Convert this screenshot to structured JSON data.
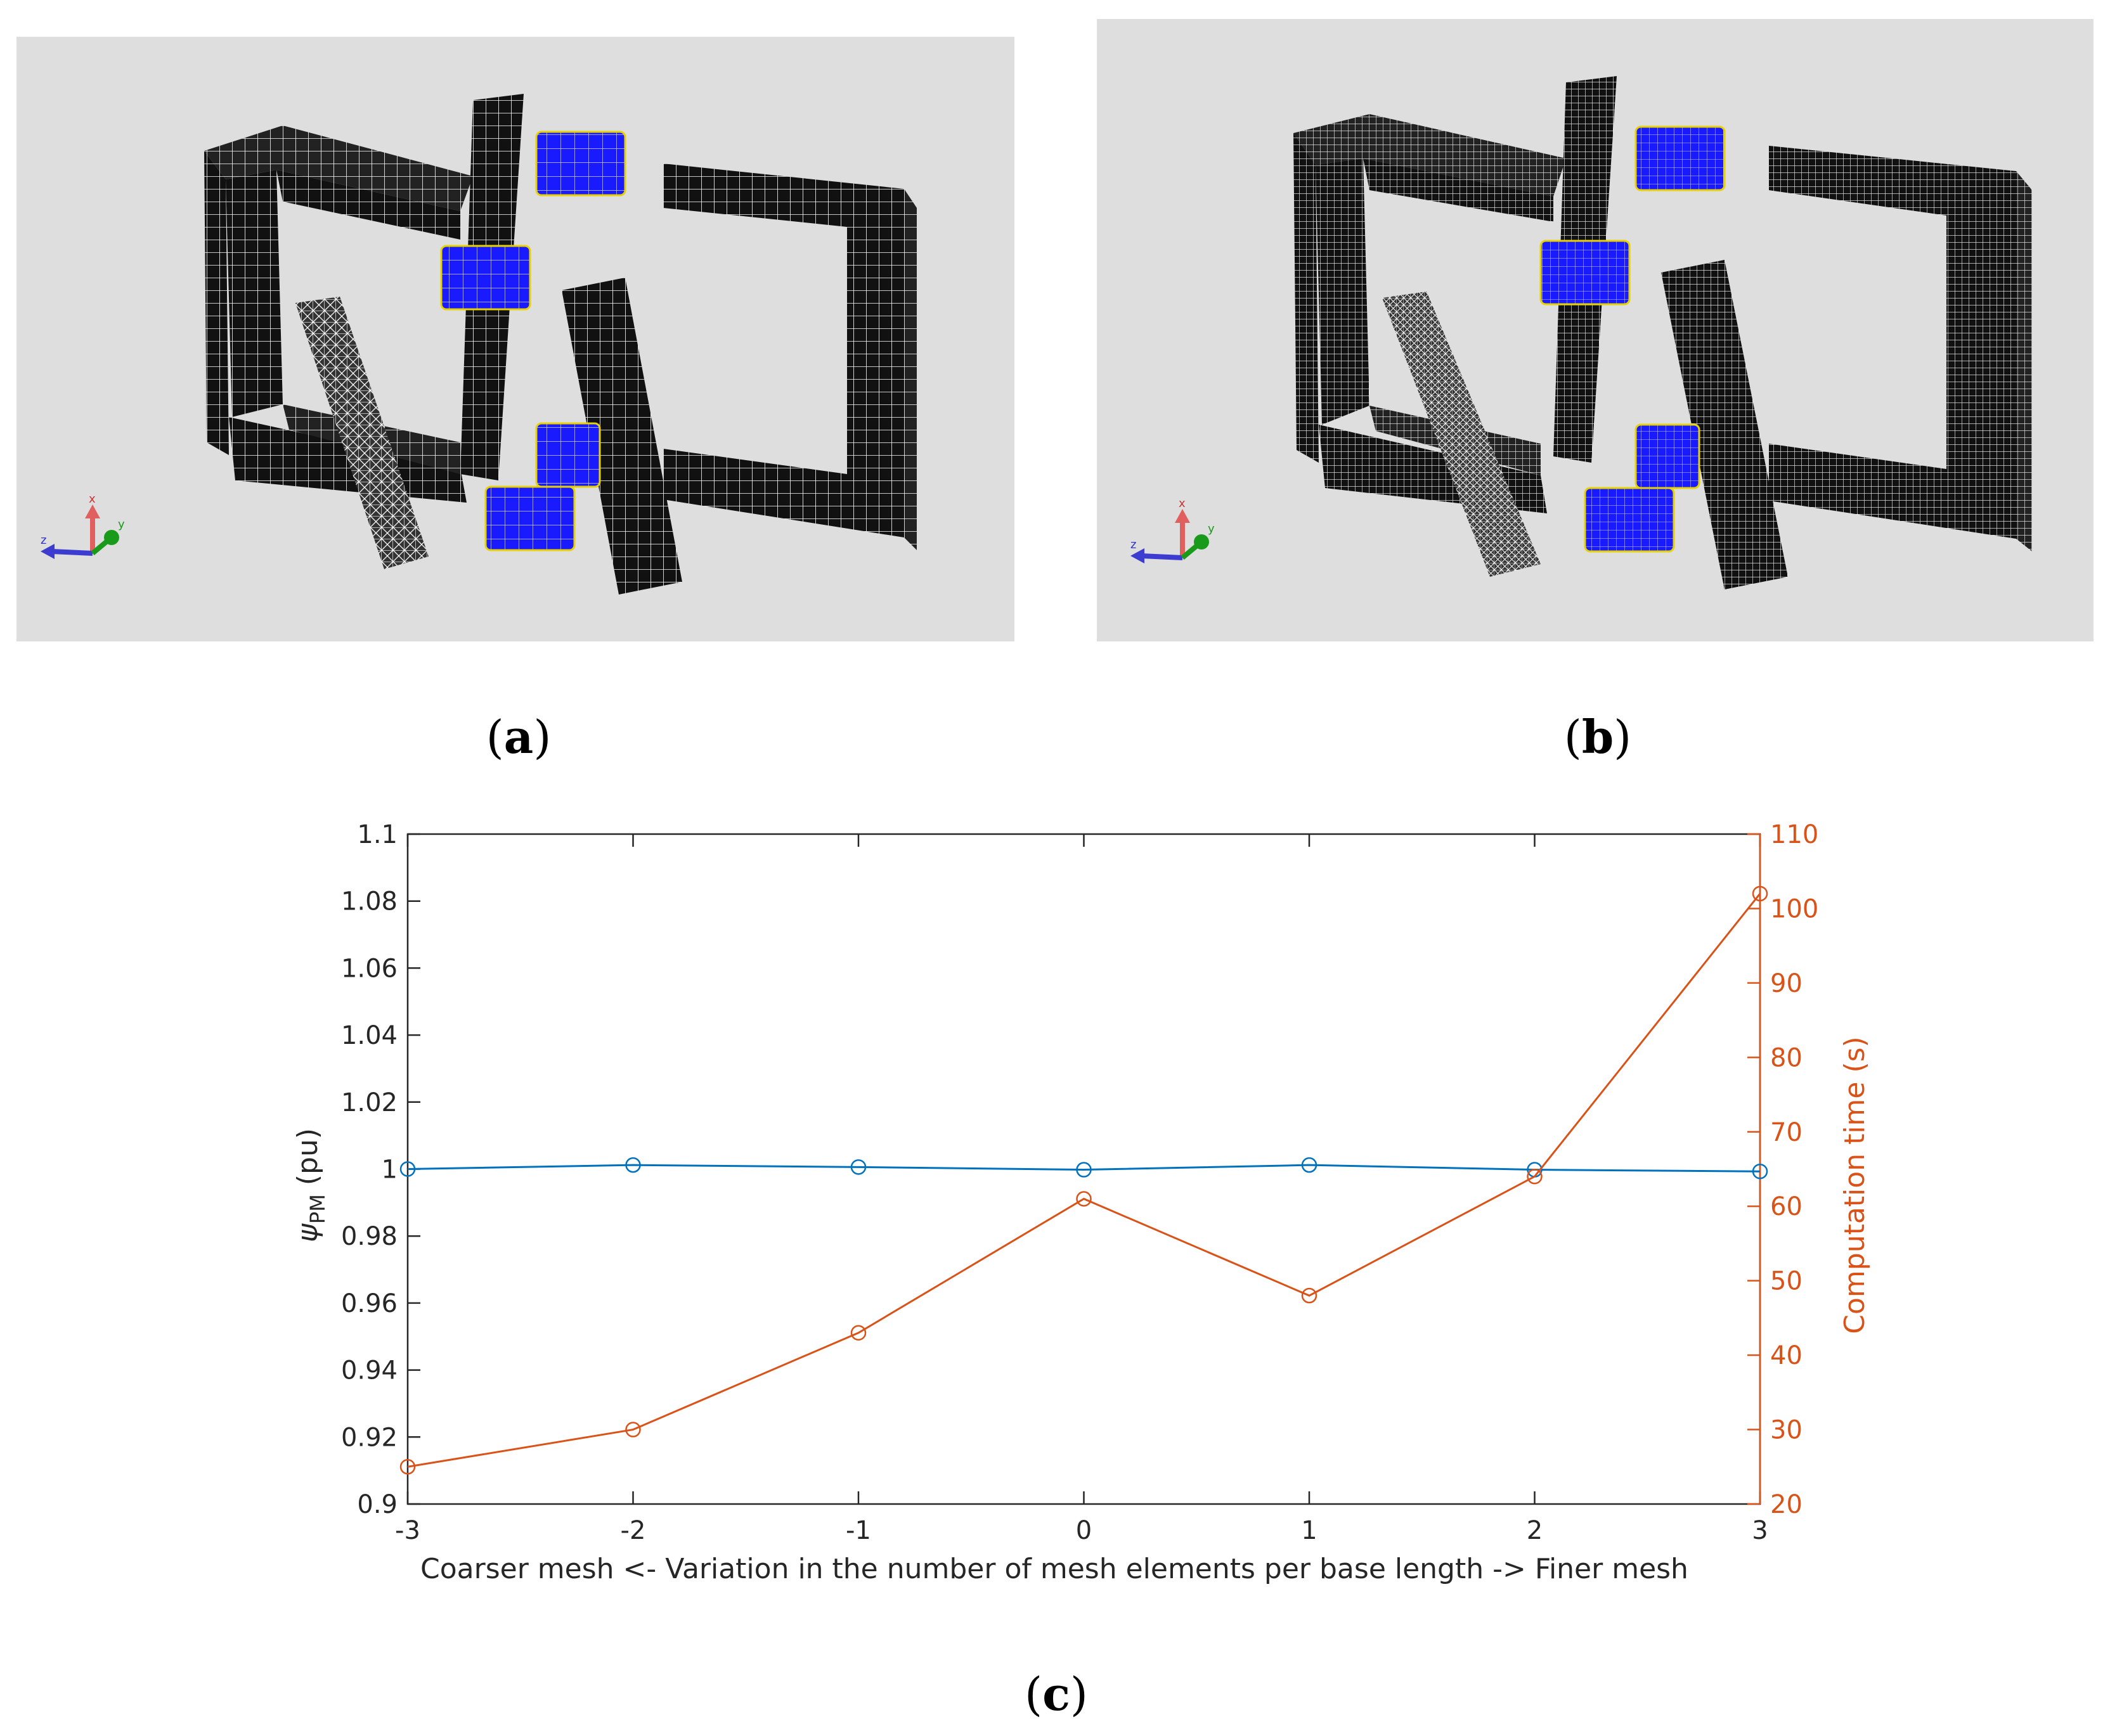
{
  "captions": {
    "a": "a",
    "b": "b",
    "c": "c"
  },
  "axis_triad": {
    "x": "x",
    "y": "y",
    "z": "z"
  },
  "colors": {
    "background_panel": "#dedede",
    "mesh_solid": "#111111",
    "mesh_lines": "#ffffff",
    "magnet": "#1a1aff",
    "magnet_edge": "#e6d200",
    "left_series": "#0072bd",
    "right_series": "#d95319"
  },
  "chart_data": {
    "type": "line",
    "xlabel": "Coarser mesh <- Variation in the number of mesh elements per base length -> Finer mesh",
    "ylabel_left": {
      "symbol": "ψ",
      "subscript": "PM",
      "unit": "(pu)"
    },
    "ylabel_right": "Computation time (s)",
    "x": [
      -3,
      -2,
      -1,
      0,
      1,
      2,
      3
    ],
    "xlim": [
      -3,
      3
    ],
    "xticks": [
      "-3",
      "-2",
      "-1",
      "0",
      "1",
      "2",
      "3"
    ],
    "ylim_left": [
      0.9,
      1.1
    ],
    "yticks_left": [
      "0.9",
      "0.92",
      "0.94",
      "0.96",
      "0.98",
      "1",
      "1.02",
      "1.04",
      "1.06",
      "1.08",
      "1.1"
    ],
    "ylim_right": [
      20,
      110
    ],
    "yticks_right": [
      "20",
      "30",
      "40",
      "50",
      "60",
      "70",
      "80",
      "90",
      "100",
      "110"
    ],
    "grid": false,
    "series": [
      {
        "axis": "left",
        "marker": "circle",
        "color": "#0072bd",
        "values": [
          1.0,
          1.0012,
          1.0006,
          0.9998,
          1.0012,
          0.9998,
          0.9993
        ]
      },
      {
        "axis": "right",
        "marker": "circle",
        "color": "#d95319",
        "values": [
          25,
          30,
          43,
          61,
          48,
          64,
          102
        ]
      }
    ]
  }
}
